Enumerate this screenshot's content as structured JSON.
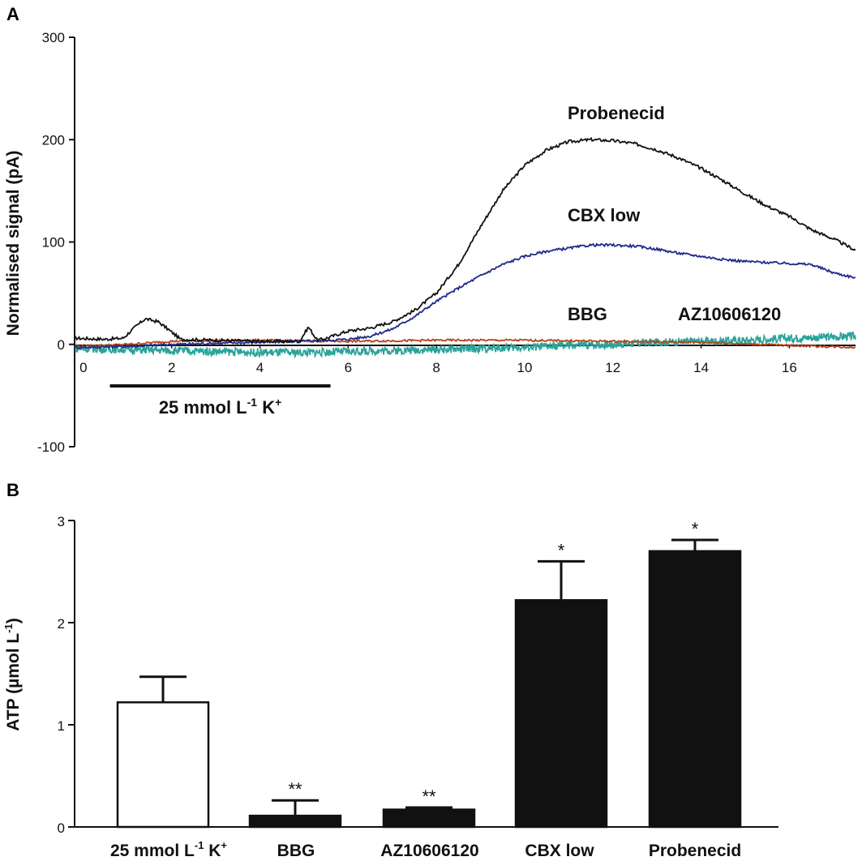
{
  "chart_data": [
    {
      "panel": "A",
      "type": "line",
      "ylabel": "Normalised signal (pA)",
      "ylim": [
        -100,
        300
      ],
      "yticks": [
        300,
        200,
        100,
        0,
        -100
      ],
      "xlim": [
        -0.2,
        17.5
      ],
      "xticks": [
        0,
        2,
        4,
        6,
        8,
        10,
        12,
        14,
        16
      ],
      "stimulus": {
        "label_main": "25 mmol L",
        "label_sup1": "-1",
        "label_k": " K",
        "label_sup2": "+",
        "start": 0.6,
        "end": 5.6
      },
      "series": [
        {
          "name": "Probenecid",
          "color": "#111111",
          "x": [
            -0.2,
            0.5,
            0.9,
            1.2,
            1.4,
            1.7,
            2.0,
            2.2,
            3.0,
            4.0,
            4.9,
            5.1,
            5.3,
            5.5,
            6.0,
            6.5,
            7.0,
            7.5,
            8.0,
            8.5,
            9.0,
            9.5,
            10.0,
            10.5,
            11.0,
            11.5,
            12.0,
            12.5,
            13.0,
            13.5,
            14.0,
            14.5,
            15.0,
            15.5,
            16.0,
            16.5,
            17.0,
            17.5
          ],
          "y": [
            6,
            5,
            6,
            18,
            25,
            22,
            12,
            5,
            4,
            3,
            3,
            17,
            4,
            6,
            13,
            16,
            22,
            33,
            50,
            78,
            115,
            150,
            175,
            190,
            198,
            200,
            199,
            196,
            190,
            182,
            172,
            160,
            147,
            135,
            125,
            112,
            103,
            92
          ]
        },
        {
          "name": "CBX low",
          "color": "#1f2a8c",
          "x": [
            -0.2,
            1.0,
            2.0,
            3.0,
            4.0,
            5.0,
            6.0,
            6.5,
            7.0,
            7.5,
            8.0,
            8.5,
            9.0,
            9.5,
            10.0,
            10.5,
            11.0,
            11.5,
            12.0,
            12.5,
            13.0,
            13.5,
            14.0,
            14.5,
            15.0,
            15.5,
            16.0,
            16.5,
            17.0,
            17.5
          ],
          "y": [
            -3,
            -2,
            0,
            1,
            2,
            3,
            5,
            8,
            15,
            27,
            42,
            55,
            67,
            78,
            86,
            91,
            94,
            97,
            97,
            96,
            93,
            89,
            86,
            83,
            81,
            80,
            79,
            78,
            70,
            65
          ]
        },
        {
          "name": "BBG",
          "color": "#b5431a",
          "x": [
            -0.2,
            1.0,
            2.0,
            4.0,
            6.0,
            8.0,
            10.0,
            12.0,
            14.0,
            16.0,
            17.5
          ],
          "y": [
            -2,
            0,
            3,
            4,
            3,
            4,
            4,
            3,
            2,
            -1,
            -3
          ]
        },
        {
          "name": "AZ10606120",
          "color": "#2aa39a",
          "x": [
            -0.2,
            1.0,
            2.0,
            3.0,
            4.0,
            5.0,
            6.0,
            7.0,
            8.0,
            9.0,
            10.0,
            11.0,
            12.0,
            13.0,
            14.0,
            15.0,
            16.0,
            17.5
          ],
          "y": [
            -4,
            -5,
            -6,
            -7,
            -8,
            -8,
            -7,
            -6,
            -5,
            -4,
            -3,
            -1,
            0,
            2,
            3,
            4,
            6,
            8
          ]
        }
      ]
    },
    {
      "panel": "B",
      "type": "bar",
      "ylabel_main": "ATP (µmol L",
      "ylabel_sup": "-1",
      "ylabel_close": ")",
      "ylim": [
        0,
        3
      ],
      "yticks": [
        3,
        2,
        1,
        0
      ],
      "categories": [
        "25 mmol L-1 K+",
        "BBG",
        "AZ10606120",
        "CBX low",
        "Probenecid"
      ],
      "values": [
        1.22,
        0.11,
        0.17,
        2.22,
        2.7
      ],
      "errors": [
        0.25,
        0.15,
        0.02,
        0.38,
        0.11
      ],
      "fills": [
        "#ffffff",
        "#111111",
        "#111111",
        "#111111",
        "#111111"
      ],
      "significance": [
        "",
        "**",
        "**",
        "*",
        "*"
      ]
    }
  ],
  "panels": {
    "a": "A",
    "b": "B"
  },
  "colors": {
    "axis": "#111111",
    "bar": "#111111"
  },
  "labels": {
    "cat0_main": "25 mmol L",
    "cat0_sup1": "-1",
    "cat0_k": " K",
    "cat0_sup2": "+",
    "cat1": "BBG",
    "cat2": "AZ10606120",
    "cat3": "CBX low",
    "cat4": "Probenecid"
  }
}
